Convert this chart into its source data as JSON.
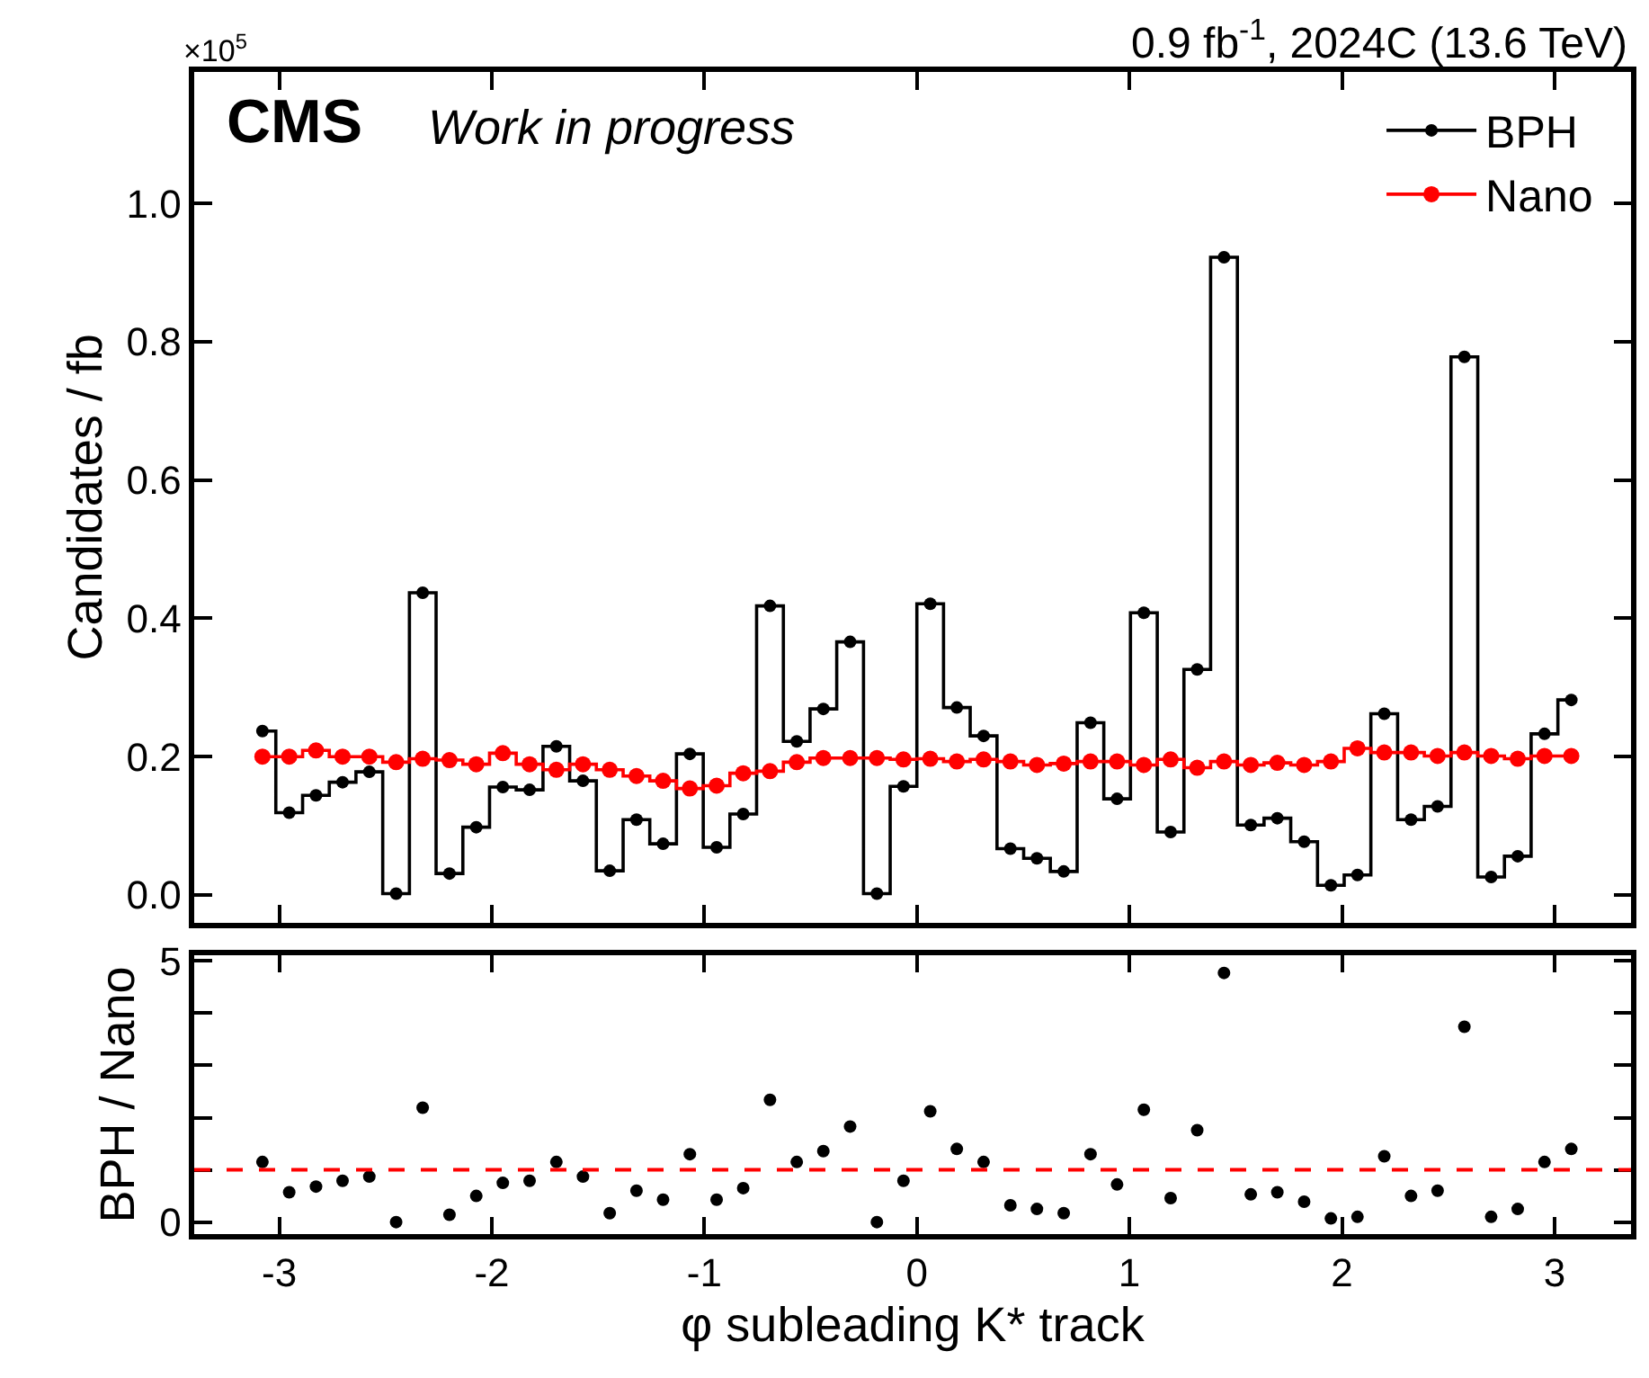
{
  "chart_data": [
    {
      "type": "step",
      "title": "0.9 fb$^{-1}$, 2024C (13.6 TeV)",
      "ylabel": "Candidates / fb",
      "annotations": [
        "CMS",
        "Work in progress",
        "×10$^{5}$"
      ],
      "x": [
        -3.079,
        -2.953,
        -2.827,
        -2.702,
        -2.576,
        -2.45,
        -2.325,
        -2.199,
        -2.073,
        -1.948,
        -1.822,
        -1.696,
        -1.571,
        -1.445,
        -1.319,
        -1.194,
        -1.068,
        -0.942,
        -0.817,
        -0.691,
        -0.565,
        -0.44,
        -0.314,
        -0.188,
        -0.063,
        0.063,
        0.188,
        0.314,
        0.44,
        0.565,
        0.691,
        0.817,
        0.942,
        1.068,
        1.194,
        1.319,
        1.445,
        1.571,
        1.696,
        1.822,
        1.948,
        2.073,
        2.199,
        2.325,
        2.45,
        2.576,
        2.702,
        2.827,
        2.953,
        3.079
      ],
      "series": [
        {
          "name": "BPH",
          "color": "#000000",
          "marker": "circle",
          "values": [
            0.237,
            0.119,
            0.144,
            0.163,
            0.178,
            0.002,
            0.437,
            0.031,
            0.098,
            0.156,
            0.152,
            0.215,
            0.165,
            0.035,
            0.109,
            0.074,
            0.204,
            0.069,
            0.117,
            0.418,
            0.222,
            0.269,
            0.366,
            0.002,
            0.157,
            0.421,
            0.271,
            0.23,
            0.067,
            0.053,
            0.034,
            0.249,
            0.139,
            0.408,
            0.091,
            0.326,
            0.922,
            0.101,
            0.111,
            0.077,
            0.014,
            0.029,
            0.262,
            0.109,
            0.128,
            0.778,
            0.026,
            0.056,
            0.233,
            0.282
          ]
        },
        {
          "name": "Nano",
          "color": "#ff0000",
          "marker": "circle",
          "values": [
            0.2,
            0.2,
            0.209,
            0.2,
            0.2,
            0.192,
            0.197,
            0.195,
            0.189,
            0.205,
            0.189,
            0.181,
            0.189,
            0.181,
            0.172,
            0.165,
            0.154,
            0.158,
            0.176,
            0.179,
            0.192,
            0.198,
            0.198,
            0.198,
            0.196,
            0.197,
            0.193,
            0.196,
            0.193,
            0.188,
            0.19,
            0.193,
            0.193,
            0.188,
            0.196,
            0.184,
            0.193,
            0.188,
            0.191,
            0.188,
            0.193,
            0.212,
            0.206,
            0.206,
            0.201,
            0.206,
            0.201,
            0.197,
            0.201,
            0.201
          ]
        }
      ],
      "xlim": [
        -3.4,
        3.36
      ],
      "xticks": [
        -3,
        -2,
        -1,
        0,
        1,
        2,
        3
      ],
      "ylim": [
        -0.04,
        1.19
      ],
      "yticks": [
        {
          "value": 0,
          "label": "0.0"
        },
        0.2,
        0.4,
        0.6,
        0.8,
        {
          "value": 1,
          "label": "1.0"
        }
      ],
      "tick_labels": "y",
      "legend": "top right"
    },
    {
      "type": "scatter",
      "xlabel": "φ subleading K* track",
      "ylabel": "BPH / Nano",
      "x": [
        -3.079,
        -2.953,
        -2.827,
        -2.702,
        -2.576,
        -2.45,
        -2.325,
        -2.199,
        -2.073,
        -1.948,
        -1.822,
        -1.696,
        -1.571,
        -1.445,
        -1.319,
        -1.194,
        -1.068,
        -0.942,
        -0.817,
        -0.691,
        -0.565,
        -0.44,
        -0.314,
        -0.188,
        -0.063,
        0.063,
        0.188,
        0.314,
        0.44,
        0.565,
        0.691,
        0.817,
        0.942,
        1.068,
        1.194,
        1.319,
        1.445,
        1.571,
        1.696,
        1.822,
        1.948,
        2.073,
        2.199,
        2.325,
        2.45,
        2.576,
        2.702,
        2.827,
        2.953,
        3.079
      ],
      "series": [
        {
          "color": "#000000",
          "marker": "circle",
          "values": [
            1.15,
            0.57,
            0.68,
            0.79,
            0.87,
            0,
            2.19,
            0.14,
            0.5,
            0.75,
            0.79,
            1.15,
            0.87,
            0.17,
            0.6,
            0.43,
            1.3,
            0.43,
            0.65,
            2.34,
            1.15,
            1.36,
            1.83,
            0,
            0.79,
            2.12,
            1.4,
            1.15,
            0.32,
            0.25,
            0.17,
            1.3,
            0.72,
            2.15,
            0.46,
            1.76,
            4.77,
            0.53,
            0.57,
            0.39,
            0.07,
            0.1,
            1.26,
            0.5,
            0.6,
            3.74,
            0.1,
            0.25,
            1.15,
            1.4
          ]
        }
      ],
      "ref_lines": [
        {
          "axis": "y",
          "value": 1,
          "color": "#ff0000",
          "line_style": "dashed"
        }
      ],
      "xlim": [
        -3.4,
        3.36
      ],
      "xticks": [
        -3,
        -2,
        -1,
        0,
        1,
        2,
        3
      ],
      "ylim": [
        -0.23,
        5.11
      ],
      "yticks": [
        0,
        {
          "value": 1,
          "label": null
        },
        {
          "value": 2,
          "label": null
        },
        {
          "value": 3,
          "label": null
        },
        {
          "value": 4,
          "label": null
        },
        5
      ],
      "legend": false
    }
  ]
}
